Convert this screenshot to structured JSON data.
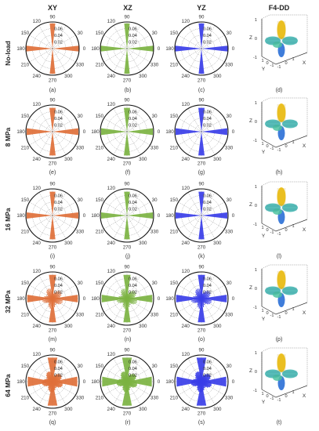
{
  "figure": {
    "column_headers": [
      "XY",
      "XZ",
      "YZ",
      "F4-DD"
    ],
    "row_headers": [
      "No-load",
      "8 MPa",
      "16 MPa",
      "32 MPa",
      "64 MPa"
    ],
    "panel_labels": [
      [
        "(a)",
        "(b)",
        "(c)",
        "(d)"
      ],
      [
        "(e)",
        "(f)",
        "(g)",
        "(h)"
      ],
      [
        "(i)",
        "(j)",
        "(k)",
        "(l)"
      ],
      [
        "(m)",
        "(n)",
        "(o)",
        "(p)"
      ],
      [
        "(q)",
        "(r)",
        "(s)",
        "(t)"
      ]
    ],
    "colors": {
      "XY": "#e0703a",
      "XZ": "#7cb342",
      "YZ": "#3a3ee8",
      "surface_top": "#f0c419",
      "surface_mid": "#3fb7b0",
      "surface_low": "#2a6fd6"
    }
  },
  "chart_data": {
    "type": "polar_rose",
    "angle_ticks": [
      "0",
      "30",
      "60",
      "90",
      "120",
      "150",
      "180",
      "210",
      "240",
      "270",
      "300",
      "330"
    ],
    "radial_ticks": [
      "0.02",
      "0.04",
      "0.06"
    ],
    "rmax": 0.08,
    "surface_axes": {
      "z_ticks": [
        "1",
        "0",
        "-1"
      ],
      "x_ticks": [
        "-1",
        "0",
        "1"
      ],
      "y_ticks": [
        "1",
        "0",
        "-1"
      ],
      "labels": [
        "Z",
        "Y",
        "X"
      ]
    }
  }
}
